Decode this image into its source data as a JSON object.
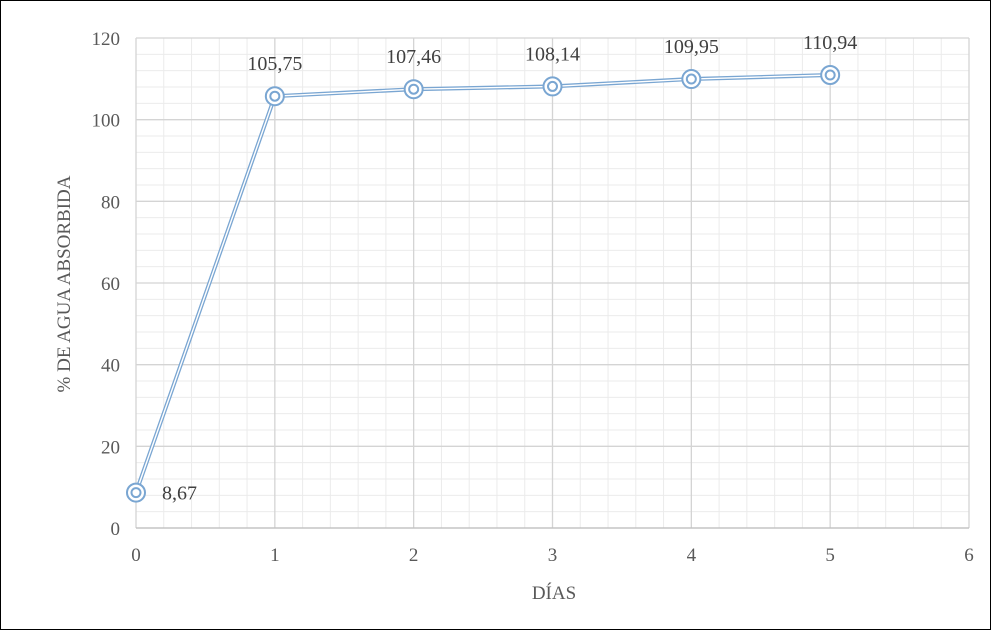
{
  "chart_data": {
    "type": "line",
    "title": "",
    "xlabel": "DÍAS",
    "ylabel": "% DE AGUA ABSORBIDA",
    "xlim": [
      0,
      6
    ],
    "ylim": [
      0,
      120
    ],
    "xticks": [
      0,
      1,
      2,
      3,
      4,
      5,
      6
    ],
    "yticks": [
      0,
      20,
      40,
      60,
      80,
      100,
      120
    ],
    "grid": true,
    "minor_grid": true,
    "legend": "none",
    "series": [
      {
        "x": [
          0,
          1,
          2,
          3,
          4,
          5
        ],
        "y": [
          8.67,
          105.75,
          107.46,
          108.14,
          109.95,
          110.94
        ],
        "labels": [
          "8,67",
          "105,75",
          "107,46",
          "108,14",
          "109,95",
          "110,94"
        ],
        "color": "#7aa6d2"
      }
    ]
  }
}
